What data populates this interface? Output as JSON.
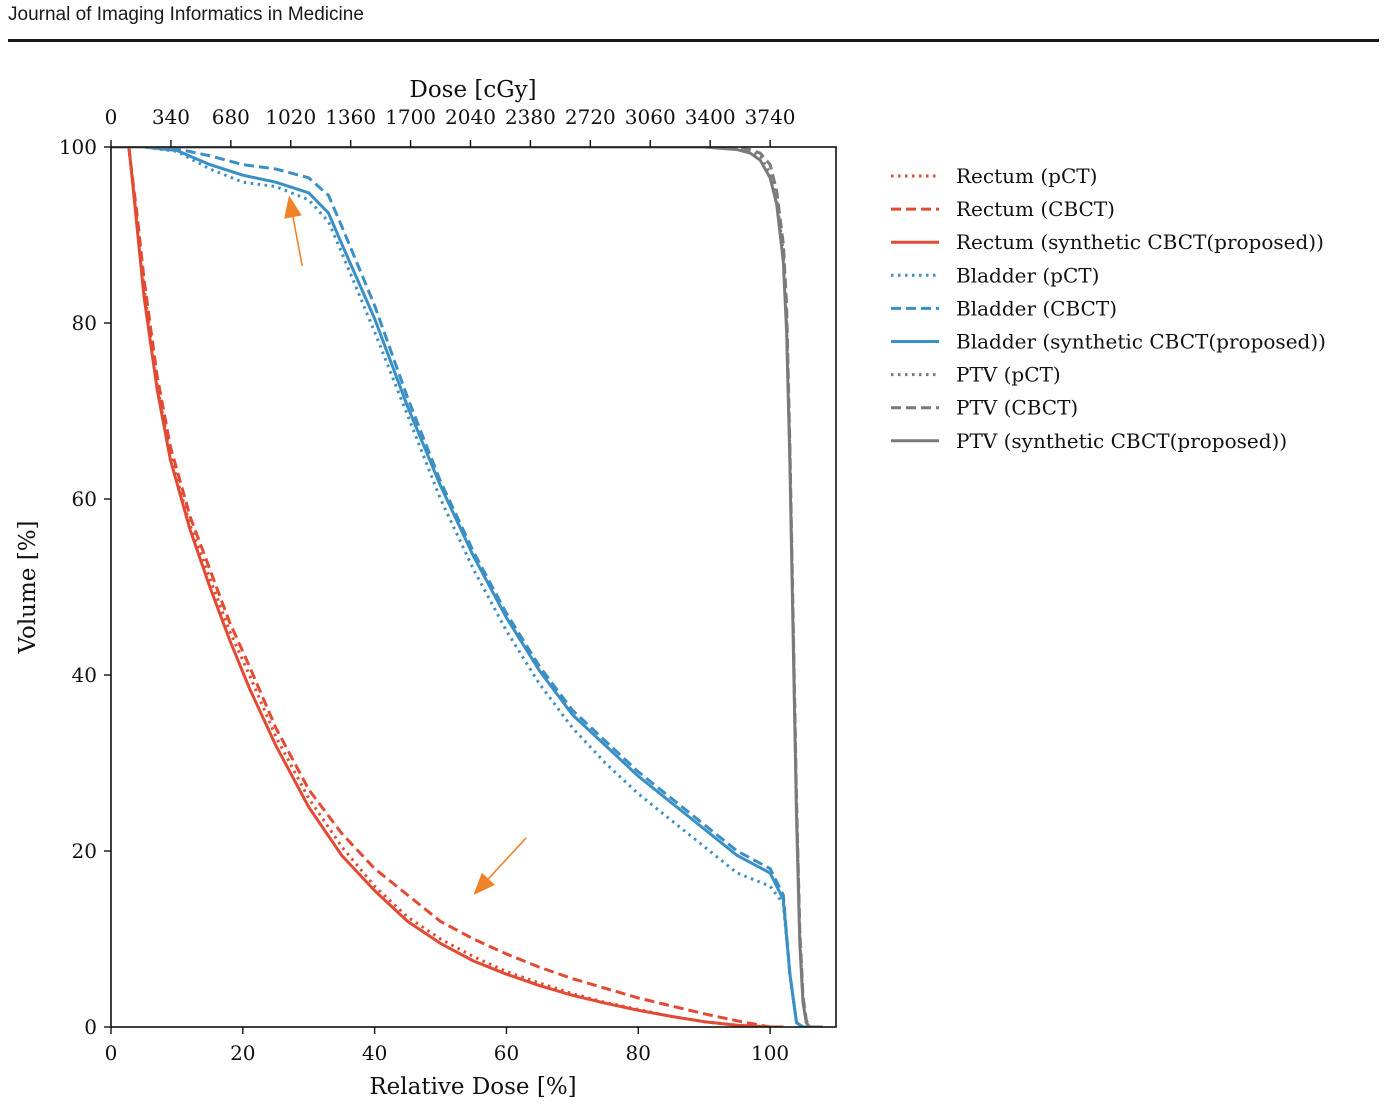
{
  "header": {
    "journal": "Journal of Imaging Informatics in Medicine"
  },
  "chart_data": {
    "type": "line",
    "xlabel": "Relative Dose [%]",
    "ylabel": "Volume [%]",
    "x2label": "Dose [cGy]",
    "xlim": [
      0,
      110
    ],
    "ylim": [
      0,
      100
    ],
    "x2lim": [
      0,
      4114
    ],
    "xticks": [
      0,
      20,
      40,
      60,
      80,
      100
    ],
    "yticks": [
      0,
      20,
      40,
      60,
      80,
      100
    ],
    "x2ticks": [
      0,
      340,
      680,
      1020,
      1360,
      1700,
      2040,
      2380,
      2720,
      3060,
      3400,
      3740
    ],
    "grid": false,
    "legend_position": "outside-right",
    "colors": {
      "rectum": "#e34a33",
      "bladder": "#3a8fc4",
      "ptv": "#7a7a7a"
    },
    "series": [
      {
        "name": "Rectum (pCT)",
        "color": "#e34a33",
        "style": "dotted",
        "x": [
          2.7,
          3,
          4,
          5,
          7,
          9,
          12,
          15,
          18,
          21,
          25,
          30,
          35,
          40,
          45,
          50,
          55,
          60,
          65,
          70,
          75,
          80,
          85,
          90,
          95,
          100,
          102
        ],
        "y": [
          100,
          98,
          91,
          84,
          73,
          65,
          57,
          51,
          45,
          40,
          33,
          26,
          20.5,
          16,
          12.5,
          10,
          8,
          6.3,
          5,
          3.8,
          2.8,
          2,
          1.2,
          0.6,
          0.2,
          0,
          0
        ]
      },
      {
        "name": "Rectum (CBCT)",
        "color": "#e34a33",
        "style": "dashed",
        "x": [
          2.7,
          3,
          4,
          5,
          7,
          9,
          12,
          15,
          18,
          21,
          25,
          30,
          35,
          40,
          45,
          50,
          55,
          60,
          65,
          70,
          75,
          80,
          85,
          90,
          95,
          100,
          102
        ],
        "y": [
          100,
          98,
          92,
          85,
          74,
          66,
          58,
          52,
          46,
          41,
          34,
          27,
          22,
          18,
          15,
          12,
          10,
          8.3,
          6.8,
          5.5,
          4.4,
          3.3,
          2.4,
          1.5,
          0.7,
          0,
          0
        ]
      },
      {
        "name": "Rectum (synthetic CBCT(proposed))",
        "color": "#e34a33",
        "style": "solid",
        "x": [
          2.7,
          3,
          4,
          5,
          7,
          9,
          12,
          15,
          18,
          21,
          25,
          30,
          35,
          40,
          45,
          50,
          55,
          60,
          65,
          70,
          75,
          80,
          85,
          90,
          95,
          100,
          101
        ],
        "y": [
          100,
          98,
          90.5,
          83,
          72.5,
          64.5,
          56.5,
          50,
          44,
          38.5,
          32,
          25,
          19.5,
          15.5,
          12,
          9.5,
          7.5,
          6,
          4.7,
          3.6,
          2.7,
          1.9,
          1.2,
          0.6,
          0.2,
          0,
          0
        ]
      },
      {
        "name": "Bladder (pCT)",
        "color": "#3a8fc4",
        "style": "dotted",
        "x": [
          0,
          5,
          10,
          15,
          20,
          25,
          30,
          33,
          35,
          40,
          45,
          50,
          55,
          60,
          65,
          70,
          75,
          80,
          85,
          90,
          95,
          100,
          102,
          103,
          104,
          105,
          106
        ],
        "y": [
          100,
          100,
          99.5,
          97.5,
          96,
          95.5,
          94,
          91.5,
          88,
          79,
          69.5,
          60,
          52,
          45,
          39,
          34,
          30,
          26.5,
          23.5,
          20.5,
          17.5,
          16,
          14,
          6,
          0.5,
          0,
          0
        ]
      },
      {
        "name": "Bladder (CBCT)",
        "color": "#3a8fc4",
        "style": "dashed",
        "x": [
          0,
          5,
          10,
          15,
          20,
          25,
          30,
          33,
          35,
          40,
          45,
          50,
          55,
          60,
          65,
          70,
          75,
          80,
          85,
          90,
          95,
          100,
          102,
          103,
          104,
          105,
          106
        ],
        "y": [
          100,
          100,
          99.8,
          99,
          98,
          97.5,
          96.5,
          94.5,
          91,
          82,
          71.5,
          62,
          54,
          47,
          41,
          36,
          32.5,
          29,
          26,
          23,
          20,
          18,
          15,
          6,
          0.5,
          0,
          0
        ]
      },
      {
        "name": "Bladder (synthetic CBCT(proposed))",
        "color": "#3a8fc4",
        "style": "solid",
        "x": [
          0,
          5,
          10,
          15,
          20,
          25,
          30,
          33,
          35,
          40,
          45,
          50,
          55,
          60,
          65,
          70,
          75,
          80,
          85,
          90,
          95,
          100,
          102,
          103,
          104,
          105,
          106
        ],
        "y": [
          100,
          100,
          99.6,
          98,
          96.8,
          96,
          94.8,
          92.5,
          89,
          80.5,
          70.5,
          61.5,
          53.5,
          46.5,
          40.5,
          35.5,
          32,
          28.5,
          25.5,
          22.5,
          19.5,
          17.5,
          14.5,
          6,
          0.5,
          0,
          0
        ]
      },
      {
        "name": "PTV (pCT)",
        "color": "#7a7a7a",
        "style": "dotted",
        "x": [
          0,
          90,
          95,
          97,
          98.5,
          100,
          101,
          102,
          102.5,
          103,
          103.5,
          104,
          104.5,
          105,
          105.5,
          106,
          107,
          108
        ],
        "y": [
          100,
          100,
          99.8,
          99.5,
          99,
          97,
          94,
          88,
          80,
          65,
          45,
          25,
          10,
          3,
          0.5,
          0,
          0,
          0
        ]
      },
      {
        "name": "PTV (CBCT)",
        "color": "#7a7a7a",
        "style": "dashed",
        "x": [
          0,
          90,
          95,
          97,
          98.5,
          100,
          101,
          102,
          102.5,
          103,
          103.5,
          104,
          104.5,
          105,
          105.5,
          106,
          107,
          108
        ],
        "y": [
          100,
          100,
          99.9,
          99.7,
          99.3,
          98,
          95,
          89,
          82,
          66,
          46,
          26,
          11,
          3.5,
          0.8,
          0,
          0,
          0
        ]
      },
      {
        "name": "PTV (synthetic CBCT(proposed))",
        "color": "#7a7a7a",
        "style": "solid",
        "x": [
          0,
          90,
          95,
          97,
          98.5,
          100,
          101,
          102,
          102.5,
          103,
          103.5,
          104,
          104.5,
          105,
          105.5,
          106,
          107,
          108
        ],
        "y": [
          100,
          100,
          99.7,
          99.3,
          98.5,
          96.5,
          93.5,
          87,
          79,
          64,
          44,
          24,
          9.5,
          2.8,
          0.5,
          0,
          0,
          0
        ]
      }
    ],
    "annotations": [
      {
        "type": "arrow",
        "color": "#f0822a",
        "from": [
          29,
          86.5
        ],
        "to": [
          27,
          94.5
        ]
      },
      {
        "type": "arrow",
        "color": "#f0822a",
        "from": [
          63,
          21.5
        ],
        "to": [
          55,
          15
        ]
      }
    ]
  }
}
